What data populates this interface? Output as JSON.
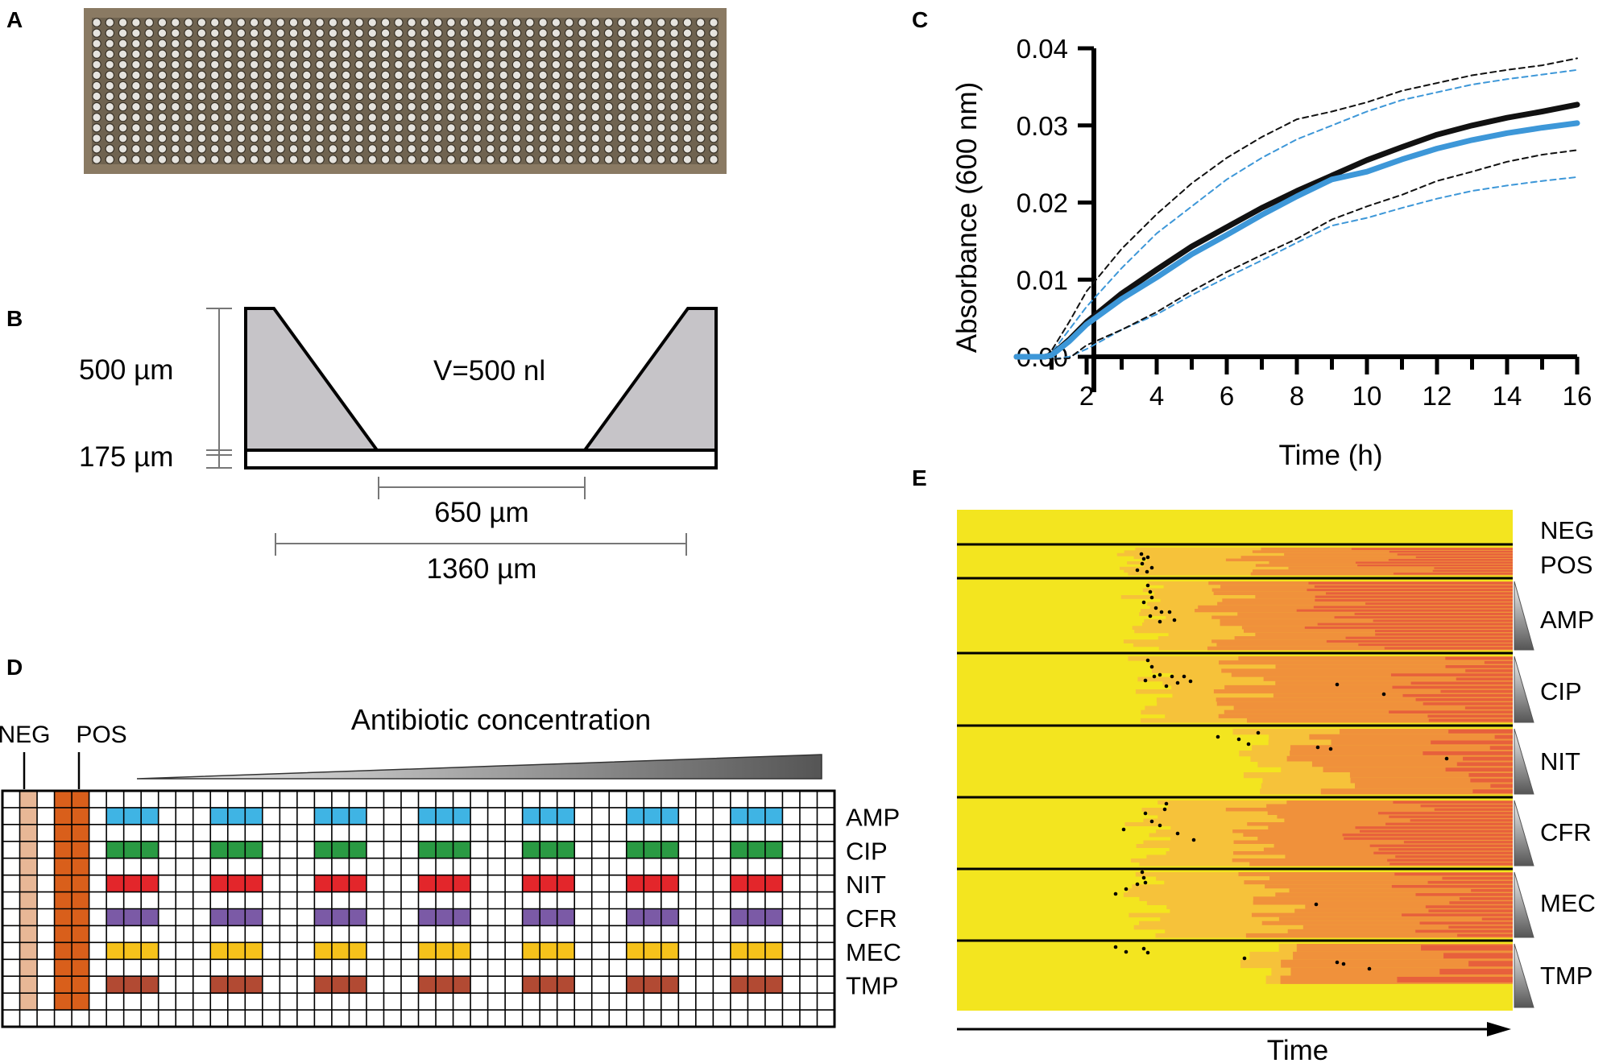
{
  "panels": {
    "a": "A",
    "b": "B",
    "c": "C",
    "d": "D",
    "e": "E"
  },
  "colors": {
    "chip_bg": "#8a7a63",
    "well_fill": "#c6c4c8",
    "heat_base": "#f3e51f",
    "heat_light": "#f6c23a",
    "heat_mid": "#f0913b",
    "heat_dark": "#e7603c",
    "series_black": "#111111",
    "series_blue": "#3d97d8"
  },
  "panel_b": {
    "height_label": "500 µm",
    "base_label": "175 µm",
    "volume_label": "V=500 nl",
    "bottom_width_label": "650 µm",
    "top_width_label": "1360 µm"
  },
  "panel_c": {
    "chart_data": {
      "type": "line",
      "title": "",
      "xlabel": "Time (h)",
      "ylabel": "Absorbance (600 nm)",
      "xlim": [
        0,
        16
      ],
      "ylim": [
        0,
        0.04
      ],
      "x_ticks": [
        "2",
        "4",
        "6",
        "8",
        "10",
        "12",
        "14",
        "16"
      ],
      "y_ticks": [
        "0.00",
        "0.01",
        "0.02",
        "0.03",
        "0.04"
      ],
      "x": [
        0,
        0.8,
        1,
        1.5,
        2,
        3,
        4,
        5,
        6,
        7,
        8,
        9,
        10,
        11,
        12,
        13,
        14,
        15,
        16
      ],
      "series": [
        {
          "name": "black mean",
          "color": "#111111",
          "style": "solid",
          "values": [
            0,
            0,
            0.0002,
            0.0022,
            0.0045,
            0.0082,
            0.0113,
            0.0143,
            0.0168,
            0.0193,
            0.0215,
            0.0235,
            0.0255,
            0.0272,
            0.0288,
            0.03,
            0.031,
            0.0318,
            0.0327
          ]
        },
        {
          "name": "blue mean",
          "color": "#3d97d8",
          "style": "solid",
          "values": [
            0,
            0,
            0.0002,
            0.002,
            0.0042,
            0.0075,
            0.0103,
            0.0133,
            0.0158,
            0.0184,
            0.0208,
            0.023,
            0.024,
            0.0256,
            0.027,
            0.0281,
            0.029,
            0.0297,
            0.0303
          ]
        },
        {
          "name": "black upper",
          "color": "#111111",
          "style": "dashed",
          "values": [
            0,
            0,
            0.0008,
            0.0045,
            0.0085,
            0.014,
            0.0185,
            0.0225,
            0.0258,
            0.0285,
            0.0308,
            0.0318,
            0.033,
            0.0345,
            0.0355,
            0.0365,
            0.0372,
            0.0378,
            0.0387
          ]
        },
        {
          "name": "blue upper",
          "color": "#3d97d8",
          "style": "dashed",
          "values": [
            0,
            0,
            0.0005,
            0.0035,
            0.0065,
            0.0115,
            0.016,
            0.0195,
            0.023,
            0.0258,
            0.0282,
            0.03,
            0.0318,
            0.0333,
            0.0343,
            0.0353,
            0.036,
            0.0366,
            0.0372
          ]
        },
        {
          "name": "blue lower",
          "color": "#3d97d8",
          "style": "dashed",
          "values": [
            0,
            0,
            -0.0003,
            0.0,
            0.001,
            0.0035,
            0.0055,
            0.008,
            0.0103,
            0.0125,
            0.0148,
            0.017,
            0.018,
            0.0193,
            0.0205,
            0.0215,
            0.0222,
            0.0228,
            0.0233
          ]
        },
        {
          "name": "black lower",
          "color": "#111111",
          "style": "dashed",
          "values": [
            0,
            0,
            -0.0003,
            -0.0002,
            0.0015,
            0.0035,
            0.0058,
            0.0085,
            0.011,
            0.0132,
            0.0153,
            0.0178,
            0.0195,
            0.021,
            0.0228,
            0.024,
            0.0253,
            0.0262,
            0.0268
          ]
        }
      ]
    }
  },
  "panel_d": {
    "neg_label": "NEG",
    "pos_label": "POS",
    "concentration_label": "Antibiotic concentration",
    "antibiotics": [
      {
        "name": "AMP",
        "color": "#3fb4e4"
      },
      {
        "name": "CIP",
        "color": "#2a9a43"
      },
      {
        "name": "NIT",
        "color": "#e3262b"
      },
      {
        "name": "CFR",
        "color": "#7b5aa6"
      },
      {
        "name": "MEC",
        "color": "#f6c21b"
      },
      {
        "name": "TMP",
        "color": "#b24a33"
      }
    ],
    "neg_color": "#e8b796",
    "pos_color": "#d95f1b",
    "grid_rows": 14,
    "grid_cols": 48
  },
  "panel_e": {
    "row_labels": [
      "NEG",
      "POS",
      "AMP",
      "CIP",
      "NIT",
      "CFR",
      "MEC",
      "TMP"
    ],
    "time_label": "Time"
  }
}
